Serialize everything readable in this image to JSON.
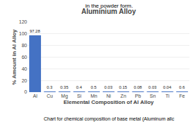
{
  "chart_data": {
    "type": "bar",
    "title": "Aluminium Alloy",
    "xlabel": "Elemental Composition of Al Alloy",
    "ylabel": "% Amount in Al Alloy",
    "annotations": [
      "in the powder form.",
      "Chart for chemical composition of base metal (Aluminum allc"
    ],
    "categories": [
      "Al",
      "Cu",
      "Mg",
      "Si",
      "Mn",
      "Ni",
      "Zn",
      "Pb",
      "Sn",
      "Ti",
      "Fe"
    ],
    "values": [
      97.28,
      0.3,
      0.35,
      0.4,
      0.5,
      0.03,
      0.15,
      0.08,
      0.03,
      0.04,
      0.6
    ],
    "color": "#4472c4",
    "ylim": [
      0,
      120
    ],
    "yticks": [
      0,
      20,
      40,
      60,
      80,
      100,
      120
    ],
    "grid": true,
    "data_labels": true
  }
}
